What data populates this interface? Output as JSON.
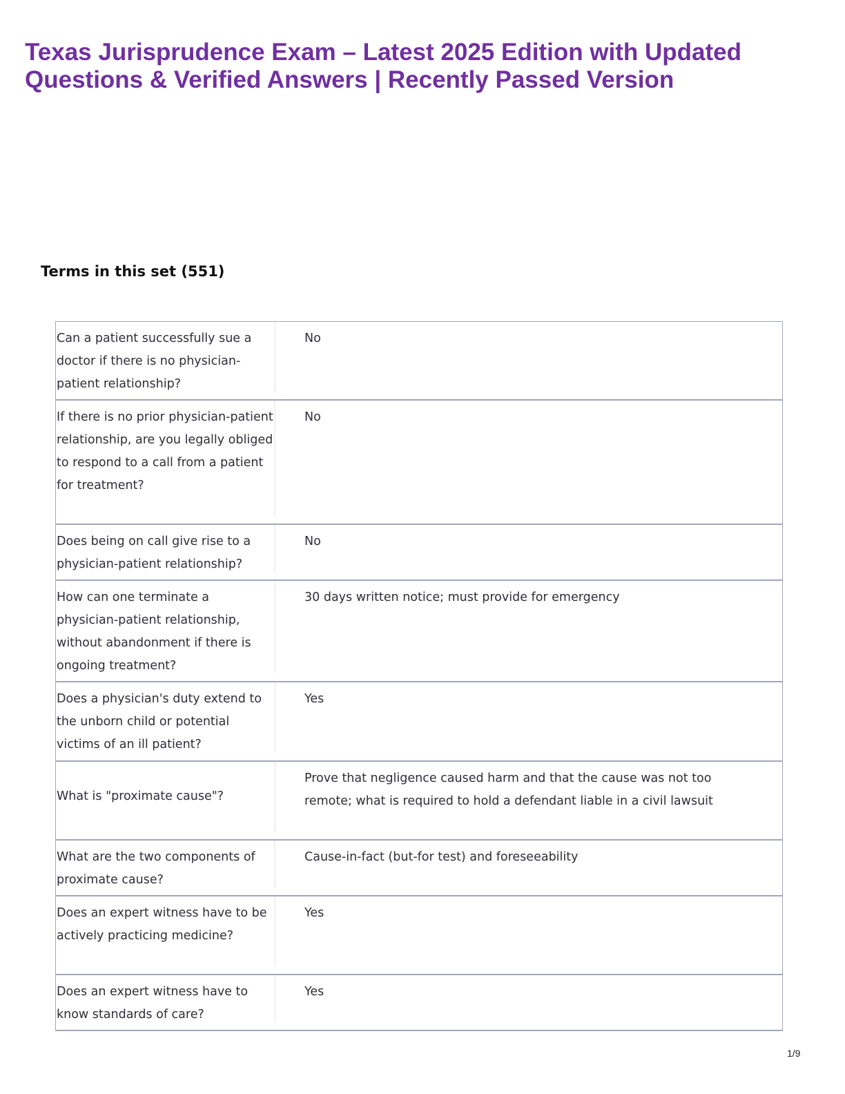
{
  "title": "Texas Jurisprudence Exam – Latest 2025 Edition with Updated Questions & Verified Answers | Recently Passed Version",
  "terms_heading": "Terms in this set (551)",
  "cards": [
    {
      "term": "Can a patient successfully sue a doctor if there is no physician-patient relationship?",
      "definition": "No"
    },
    {
      "term": "If there is no prior physician-patient relationship, are you legally obliged to respond to a call from a patient for treatment?",
      "definition": "No"
    },
    {
      "term": "Does being on call give rise to a physician-patient relationship?",
      "definition": "No"
    },
    {
      "term": "How can one terminate a physician-patient relationship, without abandonment if there is ongoing treatment?",
      "definition": "30 days written notice; must provide for emergency"
    },
    {
      "term": "Does a physician's duty extend to the unborn child or potential victims of an ill patient?",
      "definition": "Yes"
    },
    {
      "term": "What is \"proximate cause\"?",
      "definition": "Prove that negligence caused harm and that the cause was not too remote; what is required to hold a defendant liable in a civil lawsuit"
    },
    {
      "term": "What are the two components of proximate cause?",
      "definition": "Cause-in-fact (but-for test) and foreseeability"
    },
    {
      "term": "Does an expert witness have to be actively practicing medicine?",
      "definition": "Yes"
    },
    {
      "term": "Does an expert witness have to know standards of care?",
      "definition": "Yes"
    }
  ],
  "page_number": "1/9",
  "colors": {
    "title": "#7030a0",
    "border": "#a3a6ba"
  }
}
